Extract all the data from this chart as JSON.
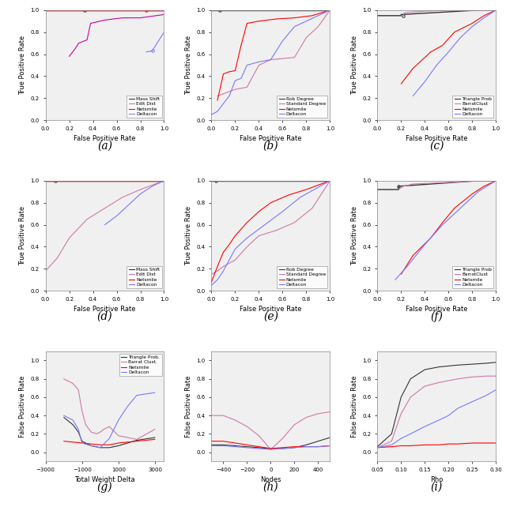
{
  "fig_width": 6.4,
  "fig_height": 6.42,
  "panel_labels": [
    "(a)",
    "(b)",
    "(c)",
    "(d)",
    "(e)",
    "(f)",
    "(g)",
    "(h)",
    "(i)"
  ],
  "panel_label_fontsize": 10,
  "subplot_a": {
    "xlabel": "False Positive Rate",
    "ylabel": "True Positive Rate",
    "xlim": [
      0.0,
      1.0
    ],
    "ylim": [
      0.0,
      1.0
    ],
    "xticks": [
      0.0,
      0.2,
      0.4,
      0.6,
      0.8,
      1.0
    ],
    "yticks": [
      0.0,
      0.2,
      0.4,
      0.6,
      0.8,
      1.0
    ],
    "legend": [
      "Mass Shift",
      "Edit Dist",
      "Netsmile",
      "Deltacon"
    ],
    "legend_colors": [
      "#333333",
      "#CC79A7",
      "#FF0000",
      "#8080FF"
    ],
    "curves": [
      {
        "x": [
          0.0,
          0.33,
          0.33,
          1.0
        ],
        "y": [
          1.0,
          1.0,
          1.0,
          1.0
        ],
        "color": "#333333",
        "lw": 1.0,
        "marker_x": 0.33,
        "marker_y": 1.0
      },
      {
        "x": [
          0.2,
          0.25,
          0.28,
          0.35,
          0.38,
          0.5,
          0.65,
          0.8,
          1.0
        ],
        "y": [
          0.58,
          0.65,
          0.7,
          0.73,
          0.88,
          0.91,
          0.93,
          0.93,
          0.96
        ],
        "color": "#CC0099",
        "lw": 0.8
      },
      {
        "x": [
          0.0,
          0.85,
          0.85,
          1.0
        ],
        "y": [
          1.0,
          1.0,
          1.0,
          1.0
        ],
        "color": "#FF0000",
        "lw": 1.0,
        "marker_x": 0.85,
        "marker_y": 1.0
      },
      {
        "x": [
          0.85,
          0.9,
          1.0
        ],
        "y": [
          0.62,
          0.63,
          0.8
        ],
        "color": "#7777FF",
        "lw": 0.8,
        "marker_x": 0.9,
        "marker_y": 0.63
      }
    ]
  },
  "subplot_b": {
    "xlabel": "False Positive Rate",
    "ylabel": "True Positive Rate",
    "xlim": [
      0.0,
      1.0
    ],
    "ylim": [
      0.0,
      1.0
    ],
    "xticks": [
      0.0,
      0.2,
      0.4,
      0.6,
      0.8,
      1.0
    ],
    "yticks": [
      0.0,
      0.2,
      0.4,
      0.6,
      0.8,
      1.0
    ],
    "legend": [
      "Rob Degree",
      "Standard Degree",
      "Netsmile",
      "Deltacon"
    ],
    "legend_colors": [
      "#333333",
      "#CC79A7",
      "#FF0000",
      "#7777FF"
    ],
    "curves": [
      {
        "x": [
          0.0,
          0.07,
          0.07,
          1.0
        ],
        "y": [
          1.0,
          1.0,
          1.0,
          1.0
        ],
        "color": "#333333",
        "lw": 1.0,
        "marker_x": 0.07,
        "marker_y": 1.0
      },
      {
        "x": [
          0.05,
          0.1,
          0.15,
          0.2,
          0.3,
          0.4,
          0.5,
          0.6,
          0.7,
          0.8,
          0.9,
          1.0
        ],
        "y": [
          0.22,
          0.24,
          0.26,
          0.28,
          0.3,
          0.5,
          0.55,
          0.56,
          0.57,
          0.75,
          0.85,
          1.0
        ],
        "color": "#CC79A7",
        "lw": 0.8
      },
      {
        "x": [
          0.05,
          0.08,
          0.1,
          0.15,
          0.2,
          0.25,
          0.3,
          0.4,
          0.55,
          0.7,
          0.85,
          1.0
        ],
        "y": [
          0.18,
          0.32,
          0.42,
          0.44,
          0.45,
          0.68,
          0.88,
          0.9,
          0.92,
          0.93,
          0.95,
          1.0
        ],
        "color": "#FF0000",
        "lw": 0.8
      },
      {
        "x": [
          0.0,
          0.05,
          0.1,
          0.15,
          0.2,
          0.25,
          0.3,
          0.4,
          0.5,
          0.6,
          0.7,
          0.8,
          0.9,
          1.0
        ],
        "y": [
          0.05,
          0.08,
          0.15,
          0.22,
          0.36,
          0.38,
          0.5,
          0.53,
          0.55,
          0.72,
          0.85,
          0.9,
          0.95,
          1.0
        ],
        "color": "#7777FF",
        "lw": 0.8
      }
    ]
  },
  "subplot_c": {
    "xlabel": "False Positive Rate",
    "ylabel": "True Positive Rate",
    "xlim": [
      0.0,
      1.0
    ],
    "ylim": [
      0.0,
      1.0
    ],
    "xticks": [
      0.0,
      0.2,
      0.4,
      0.6,
      0.8,
      1.0
    ],
    "yticks": [
      0.0,
      0.2,
      0.4,
      0.6,
      0.8,
      1.0
    ],
    "legend": [
      "Triangle Prob",
      "BarratClust",
      "Netsmile",
      "Deltacon"
    ],
    "legend_colors": [
      "#333333",
      "#CC79A7",
      "#FF0000",
      "#7777FF"
    ],
    "curves": [
      {
        "x": [
          0.0,
          0.2,
          0.2,
          0.85,
          1.0
        ],
        "y": [
          0.95,
          0.95,
          0.96,
          1.0,
          1.0
        ],
        "color": "#333333",
        "lw": 1.0,
        "marker_x": 0.22,
        "marker_y": 0.95
      },
      {
        "x": [
          0.2,
          0.22,
          0.22,
          0.25,
          0.4,
          0.6,
          0.8,
          1.0
        ],
        "y": [
          0.95,
          0.95,
          0.97,
          0.98,
          0.99,
          1.0,
          1.0,
          1.0
        ],
        "color": "#CC79A7",
        "lw": 0.8
      },
      {
        "x": [
          0.2,
          0.3,
          0.45,
          0.55,
          0.65,
          0.8,
          0.9,
          1.0
        ],
        "y": [
          0.33,
          0.47,
          0.62,
          0.68,
          0.8,
          0.88,
          0.95,
          1.0
        ],
        "color": "#FF0000",
        "lw": 0.8
      },
      {
        "x": [
          0.3,
          0.4,
          0.5,
          0.6,
          0.7,
          0.8,
          0.9,
          1.0
        ],
        "y": [
          0.22,
          0.35,
          0.5,
          0.62,
          0.75,
          0.85,
          0.93,
          1.0
        ],
        "color": "#7777FF",
        "lw": 0.8
      }
    ]
  },
  "subplot_d": {
    "xlabel": "False Positive Rate",
    "ylabel": "True Positive Rate",
    "xlim": [
      0.0,
      1.0
    ],
    "ylim": [
      0.0,
      1.0
    ],
    "xticks": [
      0.0,
      0.2,
      0.4,
      0.6,
      0.8,
      1.0
    ],
    "yticks": [
      0.0,
      0.2,
      0.4,
      0.6,
      0.8,
      1.0
    ],
    "legend": [
      "Mass Shift",
      "Edit Dist",
      "Netsmile",
      "Deltacon"
    ],
    "legend_colors": [
      "#333333",
      "#CC79A7",
      "#FF0000",
      "#7777FF"
    ],
    "curves": [
      {
        "x": [
          0.0,
          0.08,
          0.08,
          1.0
        ],
        "y": [
          1.0,
          1.0,
          1.0,
          1.0
        ],
        "color": "#333333",
        "lw": 1.0,
        "marker_x": 0.08,
        "marker_y": 1.0
      },
      {
        "x": [
          0.0,
          0.1,
          0.2,
          0.35,
          0.5,
          0.65,
          0.8,
          0.9,
          1.0
        ],
        "y": [
          0.18,
          0.3,
          0.48,
          0.65,
          0.75,
          0.85,
          0.92,
          0.96,
          1.0
        ],
        "color": "#CC79A7",
        "lw": 0.8
      },
      {
        "x": [
          0.0,
          0.08,
          0.08,
          1.0
        ],
        "y": [
          1.0,
          1.0,
          1.0,
          1.0
        ],
        "color": "#FF0000",
        "lw": 1.0
      },
      {
        "x": [
          0.5,
          0.6,
          0.7,
          0.8,
          0.9,
          1.0
        ],
        "y": [
          0.6,
          0.68,
          0.78,
          0.88,
          0.95,
          1.0
        ],
        "color": "#7777FF",
        "lw": 0.8
      }
    ]
  },
  "subplot_e": {
    "xlabel": "False Positive Rate",
    "ylabel": "True Positive Rate",
    "xlim": [
      0.0,
      1.0
    ],
    "ylim": [
      0.0,
      1.0
    ],
    "xticks": [
      0.0,
      0.2,
      0.4,
      0.6,
      0.8,
      1.0
    ],
    "yticks": [
      0.0,
      0.2,
      0.4,
      0.6,
      0.8,
      1.0
    ],
    "legend": [
      "Rob Degree",
      "Standard Degree",
      "Netsmile",
      "Deltacon"
    ],
    "legend_colors": [
      "#333333",
      "#CC79A7",
      "#FF0000",
      "#7777FF"
    ],
    "curves": [
      {
        "x": [
          0.0,
          0.04,
          0.04,
          1.0
        ],
        "y": [
          1.0,
          1.0,
          1.0,
          1.0
        ],
        "color": "#333333",
        "lw": 1.0,
        "marker_x": 0.04,
        "marker_y": 1.0
      },
      {
        "x": [
          0.0,
          0.05,
          0.1,
          0.15,
          0.2,
          0.3,
          0.4,
          0.55,
          0.7,
          0.85,
          1.0
        ],
        "y": [
          0.15,
          0.18,
          0.22,
          0.25,
          0.28,
          0.4,
          0.5,
          0.55,
          0.62,
          0.75,
          1.0
        ],
        "color": "#CC79A7",
        "lw": 0.8
      },
      {
        "x": [
          0.0,
          0.05,
          0.1,
          0.15,
          0.2,
          0.3,
          0.4,
          0.5,
          0.65,
          0.8,
          0.9,
          1.0
        ],
        "y": [
          0.08,
          0.22,
          0.35,
          0.42,
          0.5,
          0.62,
          0.72,
          0.8,
          0.87,
          0.92,
          0.96,
          1.0
        ],
        "color": "#FF0000",
        "lw": 0.8
      },
      {
        "x": [
          0.0,
          0.05,
          0.1,
          0.15,
          0.2,
          0.3,
          0.45,
          0.6,
          0.75,
          0.9,
          1.0
        ],
        "y": [
          0.05,
          0.1,
          0.18,
          0.28,
          0.38,
          0.48,
          0.6,
          0.72,
          0.85,
          0.94,
          1.0
        ],
        "color": "#7777FF",
        "lw": 0.8
      }
    ]
  },
  "subplot_f": {
    "xlabel": "False Positive Rate",
    "ylabel": "True Positive Rate",
    "xlim": [
      0.0,
      1.0
    ],
    "ylim": [
      0.0,
      1.0
    ],
    "xticks": [
      0.0,
      0.2,
      0.4,
      0.6,
      0.8,
      1.0
    ],
    "yticks": [
      0.0,
      0.2,
      0.4,
      0.6,
      0.8,
      1.0
    ],
    "legend": [
      "Triangle Prob",
      "BarratClust",
      "Netsmile",
      "Deltacon"
    ],
    "legend_colors": [
      "#333333",
      "#CC79A7",
      "#FF0000",
      "#7777FF"
    ],
    "curves": [
      {
        "x": [
          0.0,
          0.18,
          0.18,
          0.85,
          1.0
        ],
        "y": [
          0.92,
          0.92,
          0.95,
          1.0,
          1.0
        ],
        "color": "#333333",
        "lw": 1.0,
        "marker_x": 0.18,
        "marker_y": 0.95
      },
      {
        "x": [
          0.18,
          0.19,
          0.22,
          0.3,
          0.5,
          0.7,
          0.85,
          1.0
        ],
        "y": [
          0.92,
          0.93,
          0.95,
          0.97,
          0.98,
          0.99,
          1.0,
          1.0
        ],
        "color": "#CC79A7",
        "lw": 0.8
      },
      {
        "x": [
          0.2,
          0.3,
          0.45,
          0.55,
          0.65,
          0.8,
          0.9,
          1.0
        ],
        "y": [
          0.15,
          0.32,
          0.48,
          0.62,
          0.75,
          0.88,
          0.95,
          1.0
        ],
        "color": "#FF0000",
        "lw": 0.8
      },
      {
        "x": [
          0.15,
          0.25,
          0.4,
          0.55,
          0.7,
          0.85,
          1.0
        ],
        "y": [
          0.1,
          0.22,
          0.42,
          0.6,
          0.75,
          0.9,
          1.0
        ],
        "color": "#7777FF",
        "lw": 0.8
      }
    ]
  },
  "subplot_g": {
    "xlabel": "Total Weight Delta",
    "ylabel": "False Positive Rate",
    "xlim": [
      -3000,
      3500
    ],
    "ylim": [
      -0.1,
      1.1
    ],
    "xticks": [
      -3000,
      -1000,
      1000,
      3000
    ],
    "yticks": [
      0.0,
      0.2,
      0.4,
      0.6,
      0.8,
      1.0
    ],
    "legend": [
      "Triangle Prob.",
      "Barrat Clust.",
      "Netsmile",
      "Deltacon"
    ],
    "legend_colors": [
      "#333333",
      "#CC79A7",
      "#FF0000",
      "#7777FF"
    ],
    "curves": [
      {
        "x": [
          -2000,
          -1500,
          -1200,
          -1000,
          -500,
          0,
          500,
          1000,
          1500,
          2000,
          3000
        ],
        "y": [
          0.38,
          0.3,
          0.22,
          0.12,
          0.07,
          0.05,
          0.05,
          0.07,
          0.1,
          0.13,
          0.16
        ],
        "color": "#333333",
        "lw": 0.8
      },
      {
        "x": [
          -2000,
          -1500,
          -1200,
          -1000,
          -800,
          -500,
          -200,
          0,
          200,
          500,
          1000,
          1500,
          2000,
          3000
        ],
        "y": [
          0.8,
          0.75,
          0.68,
          0.45,
          0.3,
          0.22,
          0.2,
          0.22,
          0.25,
          0.28,
          0.18,
          0.16,
          0.14,
          0.25
        ],
        "color": "#CC79A7",
        "lw": 0.8
      },
      {
        "x": [
          -2000,
          -1500,
          -1000,
          -500,
          0,
          500,
          1000,
          1500,
          2000,
          3000
        ],
        "y": [
          0.12,
          0.11,
          0.1,
          0.09,
          0.08,
          0.08,
          0.1,
          0.11,
          0.12,
          0.14
        ],
        "color": "#FF0000",
        "lw": 0.8
      },
      {
        "x": [
          -2000,
          -1500,
          -1200,
          -1000,
          -500,
          0,
          500,
          1000,
          1500,
          2000,
          3000
        ],
        "y": [
          0.4,
          0.35,
          0.25,
          0.1,
          0.07,
          0.05,
          0.15,
          0.35,
          0.5,
          0.62,
          0.65
        ],
        "color": "#7777FF",
        "lw": 0.8
      }
    ]
  },
  "subplot_h": {
    "xlabel": "Nodes",
    "ylabel": "False Positive Rate",
    "xlim": [
      -500,
      500
    ],
    "ylim": [
      -0.1,
      1.1
    ],
    "xticks": [
      -400,
      -200,
      0,
      200,
      400
    ],
    "yticks": [
      0.0,
      0.2,
      0.4,
      0.6,
      0.8,
      1.0
    ],
    "legend": null,
    "curves": [
      {
        "x": [
          -500,
          -400,
          -300,
          -200,
          -100,
          0,
          100,
          200,
          300,
          400,
          500
        ],
        "y": [
          0.08,
          0.08,
          0.07,
          0.06,
          0.05,
          0.04,
          0.04,
          0.05,
          0.08,
          0.12,
          0.16
        ],
        "color": "#333333",
        "lw": 0.8
      },
      {
        "x": [
          -500,
          -400,
          -300,
          -200,
          -100,
          0,
          100,
          200,
          300,
          400,
          500
        ],
        "y": [
          0.4,
          0.4,
          0.35,
          0.28,
          0.18,
          0.03,
          0.15,
          0.3,
          0.38,
          0.42,
          0.44
        ],
        "color": "#CC79A7",
        "lw": 0.8
      },
      {
        "x": [
          -500,
          -400,
          -300,
          -200,
          -100,
          0,
          100,
          200,
          300,
          400,
          500
        ],
        "y": [
          0.12,
          0.12,
          0.1,
          0.08,
          0.06,
          0.04,
          0.05,
          0.06,
          0.06,
          0.06,
          0.07
        ],
        "color": "#FF0000",
        "lw": 0.8
      },
      {
        "x": [
          -500,
          -400,
          -300,
          -200,
          -100,
          0,
          100,
          200,
          300,
          400,
          500
        ],
        "y": [
          0.07,
          0.07,
          0.06,
          0.05,
          0.04,
          0.03,
          0.04,
          0.05,
          0.06,
          0.06,
          0.07
        ],
        "color": "#7777FF",
        "lw": 0.8
      }
    ]
  },
  "subplot_i": {
    "xlabel": "Rho",
    "ylabel": "False Positive Rate",
    "xlim": [
      0.05,
      0.3
    ],
    "ylim": [
      -0.1,
      1.1
    ],
    "xticks": [
      0.05,
      0.1,
      0.15,
      0.2,
      0.25,
      0.3
    ],
    "yticks": [
      0.0,
      0.2,
      0.4,
      0.6,
      0.8,
      1.0
    ],
    "legend": null,
    "curves": [
      {
        "x": [
          0.05,
          0.08,
          0.1,
          0.12,
          0.15,
          0.18,
          0.2,
          0.22,
          0.25,
          0.28,
          0.3
        ],
        "y": [
          0.06,
          0.2,
          0.6,
          0.8,
          0.9,
          0.93,
          0.94,
          0.95,
          0.96,
          0.97,
          0.98
        ],
        "color": "#333333",
        "lw": 0.8
      },
      {
        "x": [
          0.05,
          0.08,
          0.1,
          0.12,
          0.15,
          0.18,
          0.2,
          0.22,
          0.25,
          0.28,
          0.3
        ],
        "y": [
          0.05,
          0.12,
          0.42,
          0.6,
          0.72,
          0.76,
          0.78,
          0.8,
          0.82,
          0.83,
          0.83
        ],
        "color": "#CC79A7",
        "lw": 0.8
      },
      {
        "x": [
          0.05,
          0.08,
          0.1,
          0.12,
          0.15,
          0.18,
          0.2,
          0.22,
          0.25,
          0.28,
          0.3
        ],
        "y": [
          0.05,
          0.06,
          0.07,
          0.07,
          0.08,
          0.08,
          0.09,
          0.09,
          0.1,
          0.1,
          0.1
        ],
        "color": "#FF0000",
        "lw": 0.8
      },
      {
        "x": [
          0.05,
          0.08,
          0.1,
          0.12,
          0.15,
          0.18,
          0.2,
          0.22,
          0.25,
          0.28,
          0.3
        ],
        "y": [
          0.05,
          0.08,
          0.15,
          0.2,
          0.28,
          0.35,
          0.4,
          0.48,
          0.55,
          0.62,
          0.68
        ],
        "color": "#7777FF",
        "lw": 0.8
      }
    ]
  }
}
